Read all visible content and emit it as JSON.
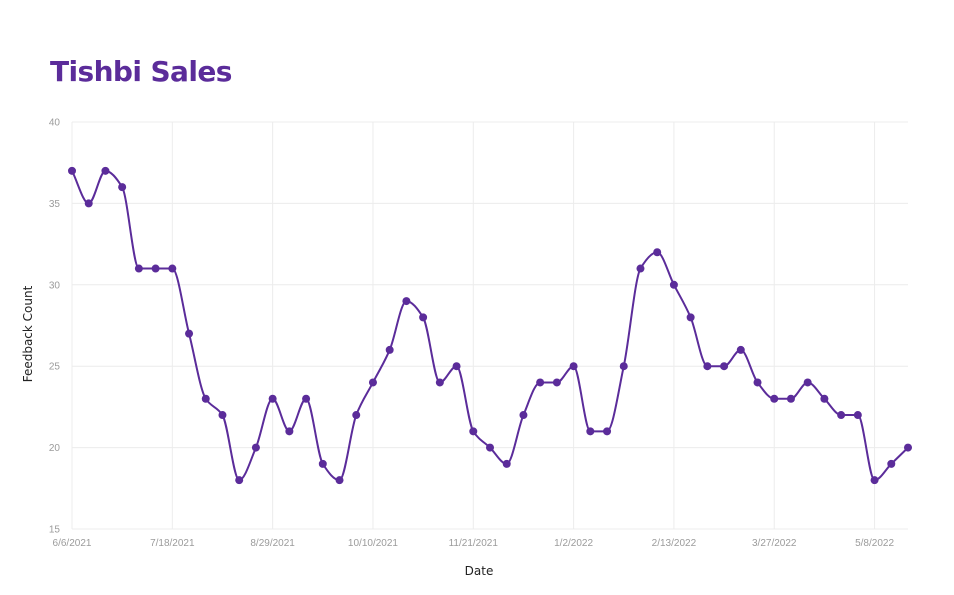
{
  "colors": {
    "accent": "#5b2c9a",
    "grid": "#ececec",
    "tick_text": "#9b9b9b",
    "axis_title_text": "#222222"
  },
  "chart_data": {
    "type": "line",
    "title": "Tishbi Sales",
    "xlabel": "Date",
    "ylabel": "Feedback Count",
    "ylim": [
      15,
      40
    ],
    "yticks": [
      15,
      20,
      25,
      30,
      35,
      40
    ],
    "grid": true,
    "x_tick_labels": [
      "6/6/2021",
      "7/18/2021",
      "8/29/2021",
      "10/10/2021",
      "11/21/2021",
      "1/2/2022",
      "2/13/2022",
      "3/27/2022",
      "5/8/2022"
    ],
    "x": [
      "6/6/2021",
      "6/13/2021",
      "6/20/2021",
      "6/27/2021",
      "7/4/2021",
      "7/11/2021",
      "7/18/2021",
      "7/25/2021",
      "8/1/2021",
      "8/8/2021",
      "8/15/2021",
      "8/22/2021",
      "8/29/2021",
      "9/5/2021",
      "9/12/2021",
      "9/19/2021",
      "9/26/2021",
      "10/3/2021",
      "10/10/2021",
      "10/17/2021",
      "10/24/2021",
      "10/31/2021",
      "11/7/2021",
      "11/14/2021",
      "11/21/2021",
      "11/28/2021",
      "12/5/2021",
      "12/12/2021",
      "12/19/2021",
      "12/26/2021",
      "1/2/2022",
      "1/9/2022",
      "1/16/2022",
      "1/23/2022",
      "1/30/2022",
      "2/6/2022",
      "2/13/2022",
      "2/20/2022",
      "2/27/2022",
      "3/6/2022",
      "3/13/2022",
      "3/20/2022",
      "3/27/2022",
      "4/3/2022",
      "4/10/2022",
      "4/17/2022",
      "4/24/2022",
      "5/1/2022",
      "5/8/2022",
      "5/15/2022",
      "5/22/2022"
    ],
    "series": [
      {
        "name": "Feedback Count",
        "values": [
          37,
          35,
          37,
          36,
          31,
          31,
          31,
          27,
          23,
          22,
          18,
          20,
          23,
          21,
          23,
          19,
          18,
          22,
          24,
          26,
          29,
          28,
          24,
          25,
          21,
          20,
          19,
          22,
          24,
          24,
          25,
          21,
          21,
          25,
          31,
          32,
          30,
          28,
          25,
          25,
          26,
          24,
          23,
          23,
          24,
          23,
          22,
          22,
          18,
          19,
          20
        ]
      }
    ]
  }
}
